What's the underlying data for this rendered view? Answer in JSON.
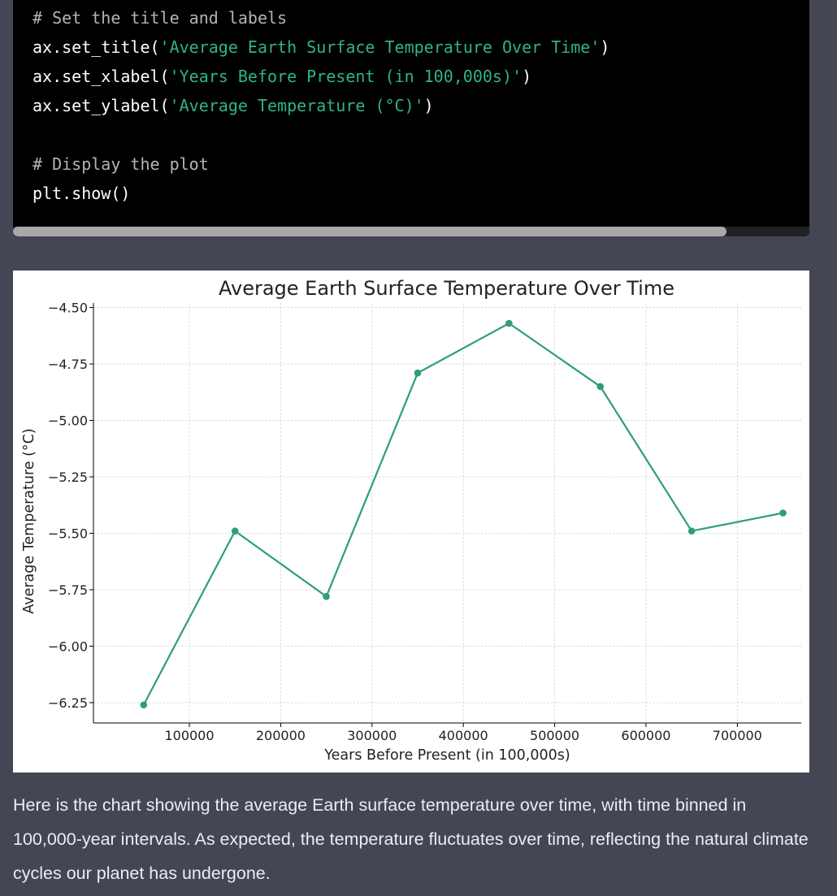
{
  "code": {
    "lines": [
      [
        {
          "t": "# Set the title and labels",
          "k": "comment"
        }
      ],
      [
        {
          "t": "ax.set_title(",
          "k": "plain"
        },
        {
          "t": "'Average Earth Surface Temperature Over Time'",
          "k": "str"
        },
        {
          "t": ")",
          "k": "plain"
        }
      ],
      [
        {
          "t": "ax.set_xlabel(",
          "k": "plain"
        },
        {
          "t": "'Years Before Present (in 100,000s)'",
          "k": "str"
        },
        {
          "t": ")",
          "k": "plain"
        }
      ],
      [
        {
          "t": "ax.set_ylabel(",
          "k": "plain"
        },
        {
          "t": "'Average Temperature (°C)'",
          "k": "str"
        },
        {
          "t": ")",
          "k": "plain"
        }
      ],
      [],
      [
        {
          "t": "# Display the plot",
          "k": "comment"
        }
      ],
      [
        {
          "t": "plt.show()",
          "k": "plain"
        }
      ]
    ]
  },
  "chart_data": {
    "type": "line",
    "title": "Average Earth Surface Temperature Over Time",
    "xlabel": "Years Before Present (in 100,000s)",
    "ylabel": "Average Temperature (°C)",
    "x": [
      50000,
      150000,
      250000,
      350000,
      450000,
      550000,
      650000,
      750000
    ],
    "y": [
      -6.26,
      -5.49,
      -5.78,
      -4.79,
      -4.57,
      -4.85,
      -5.49,
      -5.41
    ],
    "xlim": [
      -5000,
      770000
    ],
    "ylim": [
      -6.34,
      -4.48
    ],
    "xticks": [
      100000,
      200000,
      300000,
      400000,
      500000,
      600000,
      700000
    ],
    "yticks": [
      -4.5,
      -4.75,
      -5.0,
      -5.25,
      -5.5,
      -5.75,
      -6.0,
      -6.25
    ],
    "yticklabels": [
      "−4.50",
      "−4.75",
      "−5.00",
      "−5.25",
      "−5.50",
      "−5.75",
      "−6.00",
      "−6.25"
    ],
    "grid": true,
    "line_color": "#2e9e78",
    "marker": "circle"
  },
  "answer_text": "Here is the chart showing the average Earth surface temperature over time, with time binned in 100,000-year intervals. As expected, the temperature fluctuates over time, reflecting the natural climate cycles our planet has undergone.",
  "colors": {
    "page_bg": "#444654",
    "code_bg": "#000000",
    "string": "#2fb389",
    "comment": "#b4b4b4"
  }
}
